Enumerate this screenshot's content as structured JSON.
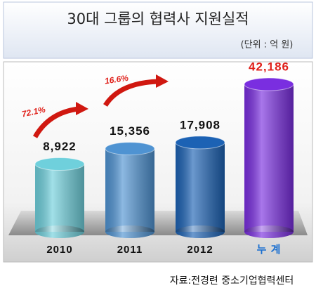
{
  "chart_data": {
    "type": "bar",
    "title": "30대 그룹의 협력사 지원실적",
    "subtitle": "(단위 : 억 원)",
    "categories": [
      "2010",
      "2011",
      "2012",
      "누 계"
    ],
    "values": [
      8922,
      15356,
      17908,
      42186
    ],
    "value_labels": [
      "8,922",
      "15,356",
      "17,908",
      "42,186"
    ],
    "colors": [
      "#6fd0dc",
      "#4f93d2",
      "#1c62b4",
      "#7a2ee0"
    ],
    "annotations": [
      {
        "text": "72.1%"
      },
      {
        "text": "16.6%"
      }
    ],
    "source": "자료:전경련 중소기업협력센터"
  }
}
